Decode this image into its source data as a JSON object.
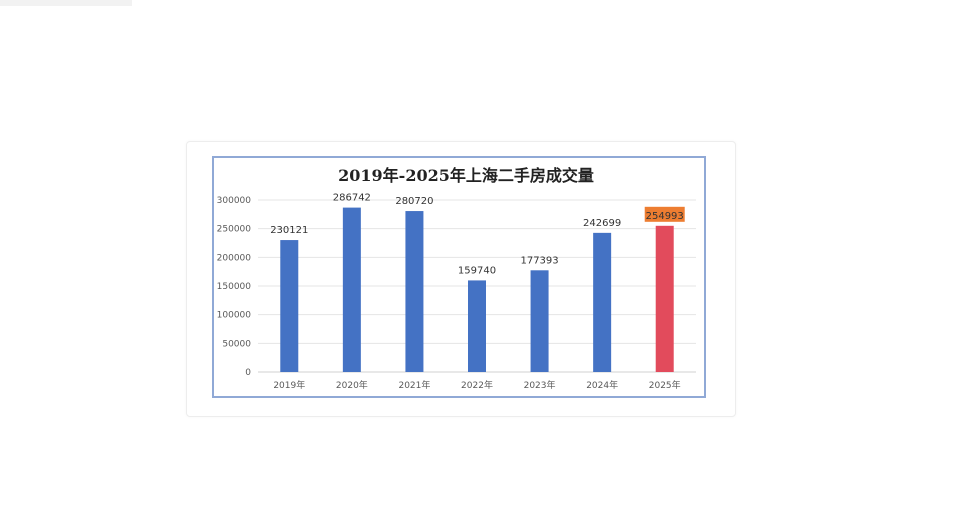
{
  "chart_data": {
    "type": "bar",
    "title": "2019年-2025年上海二手房成交量",
    "categories": [
      "2019年",
      "2020年",
      "2021年",
      "2022年",
      "2023年",
      "2024年",
      "2025年"
    ],
    "values": [
      230121,
      286742,
      280720,
      159740,
      177393,
      242699,
      254993
    ],
    "ylim": [
      0,
      300000
    ],
    "yticks": [
      0,
      50000,
      100000,
      150000,
      200000,
      250000,
      300000
    ],
    "grid": true,
    "legend": "none",
    "colors": {
      "bar": "#4472c4",
      "highlight_bar": "#e24b5c",
      "highlight_label_bg": "#ed7d31"
    },
    "highlight_index": 6
  }
}
